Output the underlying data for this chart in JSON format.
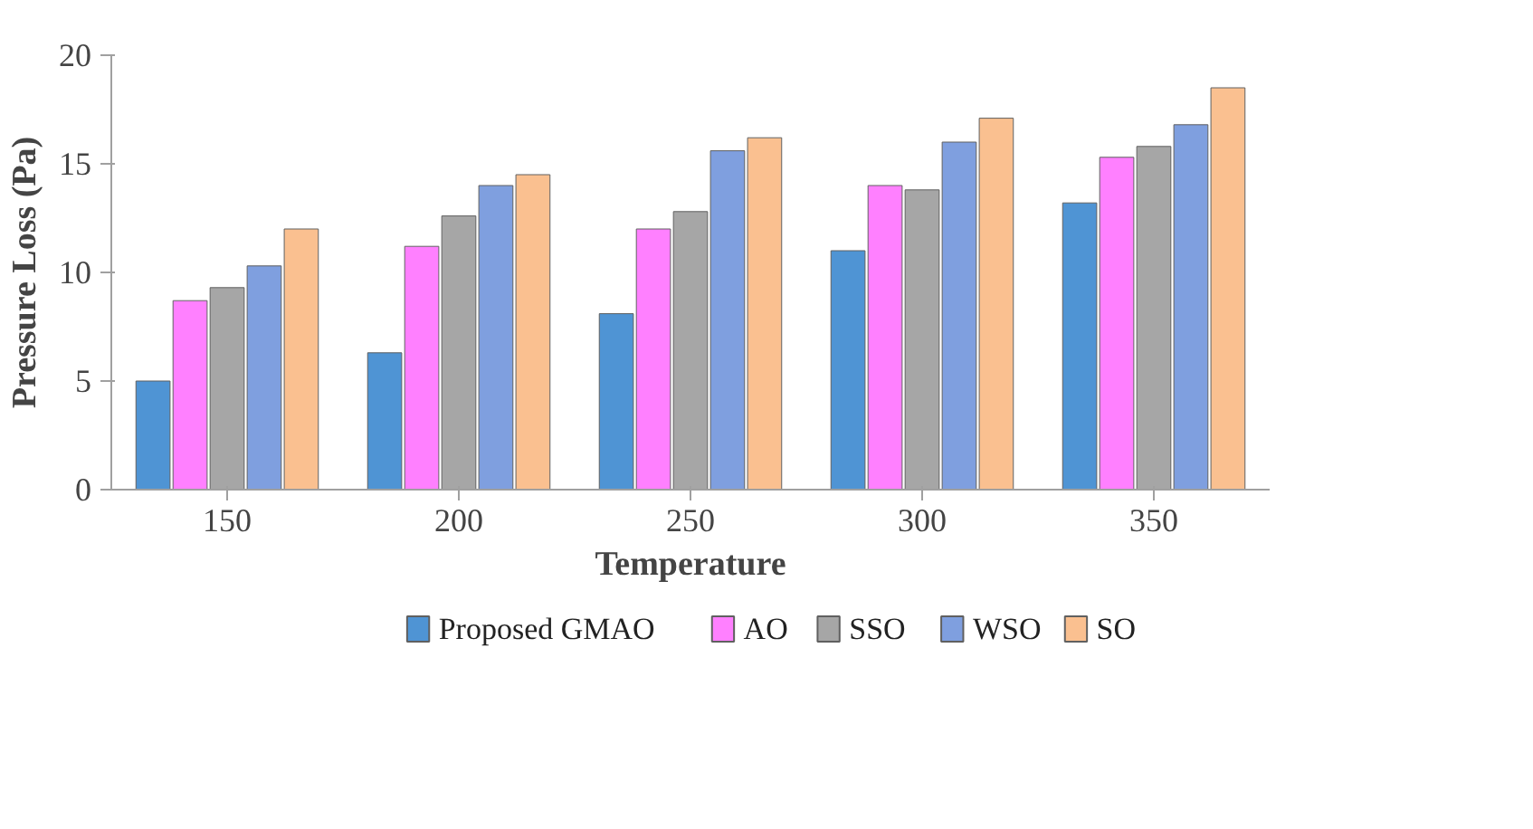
{
  "chart_data": {
    "type": "bar",
    "xlabel": "Temperature",
    "ylabel": "Pressure Loss (Pa)",
    "categories": [
      "150",
      "200",
      "250",
      "300",
      "350"
    ],
    "series": [
      {
        "name": "Proposed GMAO",
        "color": "#4f94d4",
        "values": [
          5,
          6.3,
          8.1,
          11,
          13.2
        ]
      },
      {
        "name": "AO",
        "color": "#ff80ff",
        "values": [
          8.7,
          11.2,
          12,
          14,
          15.3
        ]
      },
      {
        "name": "SSO",
        "color": "#a6a6a6",
        "values": [
          9.3,
          12.6,
          12.8,
          13.8,
          15.8
        ]
      },
      {
        "name": "WSO",
        "color": "#7f9fdf",
        "values": [
          10.3,
          14,
          15.6,
          16,
          16.8
        ]
      },
      {
        "name": "SO",
        "color": "#fac090",
        "values": [
          12,
          14.5,
          16.2,
          17.1,
          18.5
        ]
      }
    ],
    "ylim": [
      0,
      20
    ],
    "yticks": [
      0,
      5,
      10,
      15,
      20
    ],
    "grid": false,
    "legend": "bottom"
  }
}
